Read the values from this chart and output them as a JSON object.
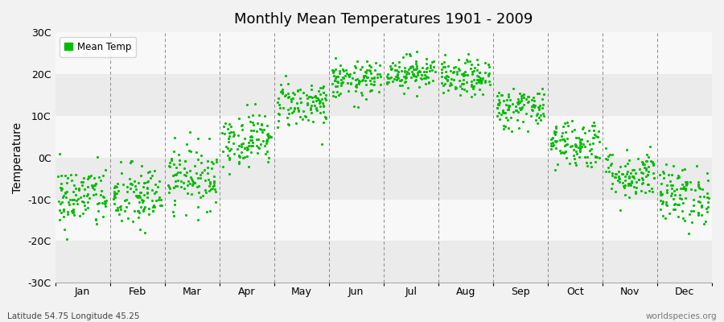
{
  "title": "Monthly Mean Temperatures 1901 - 2009",
  "ylabel": "Temperature",
  "xlabel_labels": [
    "Jan",
    "Feb",
    "Mar",
    "Apr",
    "May",
    "Jun",
    "Jul",
    "Aug",
    "Sep",
    "Oct",
    "Nov",
    "Dec"
  ],
  "subtitle_left": "Latitude 54.75 Longitude 45.25",
  "subtitle_right": "worldspecies.org",
  "ylim": [
    -30,
    30
  ],
  "yticks": [
    -30,
    -20,
    -10,
    0,
    10,
    20,
    30
  ],
  "ytick_labels": [
    "-30C",
    "-20C",
    "-10C",
    "0C",
    "10C",
    "20C",
    "30C"
  ],
  "dot_color": "#00bb00",
  "bg_color": "#f2f2f2",
  "plot_bg_color_light": "#f8f8f8",
  "plot_bg_color_dark": "#ebebeb",
  "legend_label": "Mean Temp",
  "n_years": 109,
  "monthly_means": [
    -9.5,
    -9.5,
    -4.5,
    4.5,
    13.0,
    18.5,
    20.5,
    19.0,
    12.0,
    3.5,
    -4.0,
    -9.0
  ],
  "monthly_stds": [
    3.8,
    4.0,
    3.8,
    3.2,
    2.8,
    2.2,
    2.0,
    2.2,
    2.5,
    3.0,
    3.0,
    3.5
  ],
  "seed": 42
}
